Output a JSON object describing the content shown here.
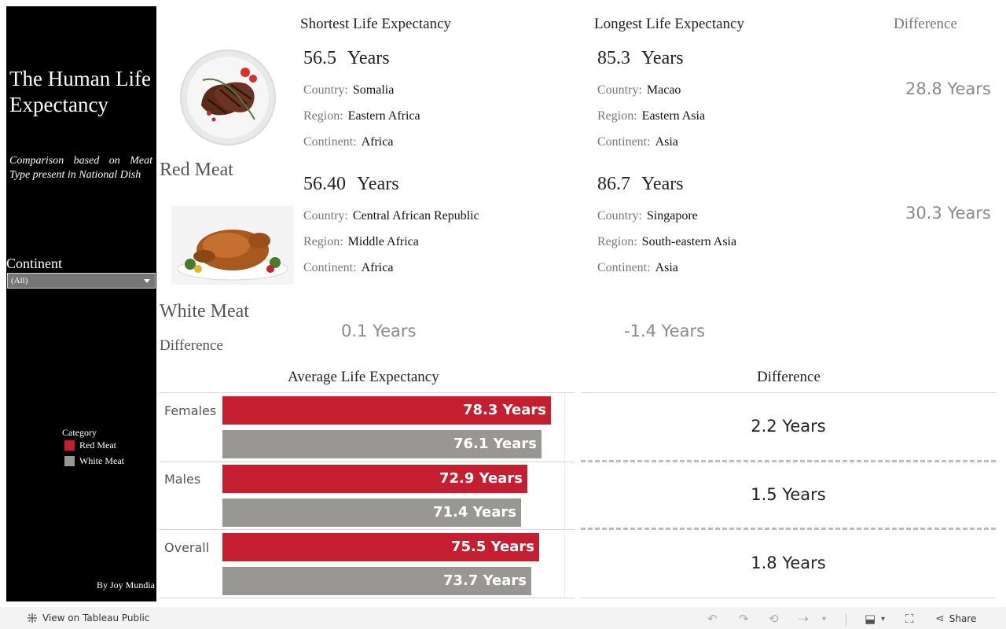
{
  "sidebar": {
    "title": "The Human Life Expectancy",
    "subtitle": "Comparison based on Meat Type present in National Dish",
    "continent_label": "Continent",
    "continent_value": "(All)",
    "legend_title": "Category",
    "legend_items": [
      {
        "label": "Red Meat",
        "color": "#c41e30"
      },
      {
        "label": "White Meat",
        "color": "#999793"
      }
    ],
    "author": "By Joy Mundia"
  },
  "headers": {
    "shortest": "Shortest Life Expectancy",
    "longest": "Longest Life Expectancy",
    "difference": "Difference"
  },
  "red_meat": {
    "label": "Red Meat",
    "shortest": {
      "value": "56.5",
      "unit": "Years",
      "country_key": "Country:",
      "country": "Somalia",
      "region_key": "Region:",
      "region": "Eastern Africa",
      "continent_key": "Continent:",
      "continent": "Africa"
    },
    "longest": {
      "value": "85.3",
      "unit": "Years",
      "country_key": "Country:",
      "country": "Macao",
      "region_key": "Region:",
      "region": "Eastern Asia",
      "continent_key": "Continent:",
      "continent": "Asia"
    },
    "difference": "28.8 Years"
  },
  "white_meat": {
    "label": "White Meat",
    "shortest": {
      "value": "56.40",
      "unit": "Years",
      "country_key": "Country:",
      "country": "Central African Republic",
      "region_key": "Region:",
      "region": "Middle Africa",
      "continent_key": "Continent:",
      "continent": "Africa"
    },
    "longest": {
      "value": "86.7",
      "unit": "Years",
      "country_key": "Country:",
      "country": "Singapore",
      "region_key": "Region:",
      "region": "South-eastern Asia",
      "continent_key": "Continent:",
      "continent": "Asia"
    },
    "difference": "30.3 Years"
  },
  "difference_row": {
    "label": "Difference",
    "shortest": "0.1 Years",
    "longest": "-1.4 Years"
  },
  "avg_chart": {
    "title": "Average Life Expectancy",
    "diff_title": "Difference"
  },
  "chart_data": {
    "type": "bar",
    "categories": [
      "Females",
      "Males",
      "Overall"
    ],
    "series": [
      {
        "name": "Red Meat",
        "color": "#c41e30",
        "values": [
          78.3,
          72.9,
          75.5
        ],
        "labels": [
          "78.3 Years",
          "72.9 Years",
          "75.5 Years"
        ]
      },
      {
        "name": "White Meat",
        "color": "#999793",
        "values": [
          76.1,
          71.4,
          73.7
        ],
        "labels": [
          "76.1 Years",
          "71.4 Years",
          "73.7 Years"
        ]
      }
    ],
    "differences": [
      "2.2 Years",
      "1.5 Years",
      "1.8 Years"
    ],
    "xlim": [
      0,
      80
    ]
  },
  "footer": {
    "view_link": "View on Tableau Public",
    "share": "Share",
    "icons": [
      "undo-icon",
      "redo-icon",
      "revert-icon",
      "forward-icon",
      "download-icon",
      "fullscreen-icon",
      "share-icon"
    ]
  }
}
